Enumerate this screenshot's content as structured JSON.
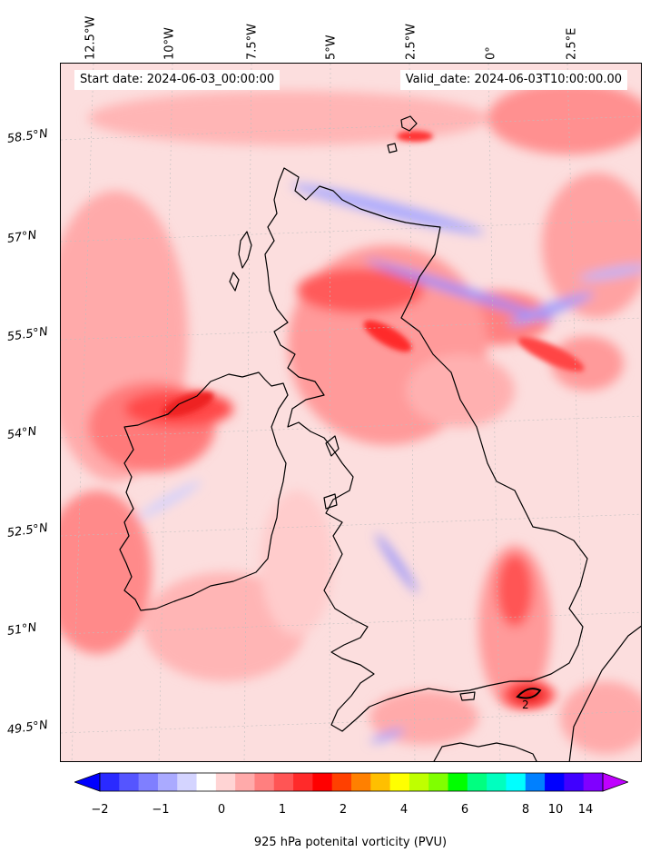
{
  "start_date": "Start date: 2024-06-03_00:00:00",
  "valid_date": "Valid_date: 2024-06-03T10:00:00.00",
  "longitude_labels": [
    "12.5°W",
    "10°W",
    "7.5°W",
    "5°W",
    "2.5°W",
    "0°",
    "2.5°E"
  ],
  "latitude_labels": [
    "58.5°N",
    "57°N",
    "55.5°N",
    "54°N",
    "52.5°N",
    "51°N",
    "49.5°N"
  ],
  "colorbar": {
    "label": "925 hPa potenital vorticity (PVU)",
    "ticks": [
      "−2",
      "−1",
      "0",
      "1",
      "2",
      "4",
      "6",
      "8",
      "10",
      "14"
    ],
    "colors": [
      "#0000ff",
      "#2a2aff",
      "#5555ff",
      "#7f7fff",
      "#aaaaff",
      "#d4d4ff",
      "#ffffff",
      "#ffd4d4",
      "#ffaaaa",
      "#ff7f7f",
      "#ff5555",
      "#ff2a2a",
      "#ff0000",
      "#ff4000",
      "#ff8000",
      "#ffbf00",
      "#ffff00",
      "#bfff00",
      "#80ff00",
      "#00ff00",
      "#00ff80",
      "#00ffbf",
      "#00ffff",
      "#0080ff",
      "#0000ff",
      "#4000ff",
      "#8000ff",
      "#bf00ff"
    ]
  },
  "contour_label": "2"
}
